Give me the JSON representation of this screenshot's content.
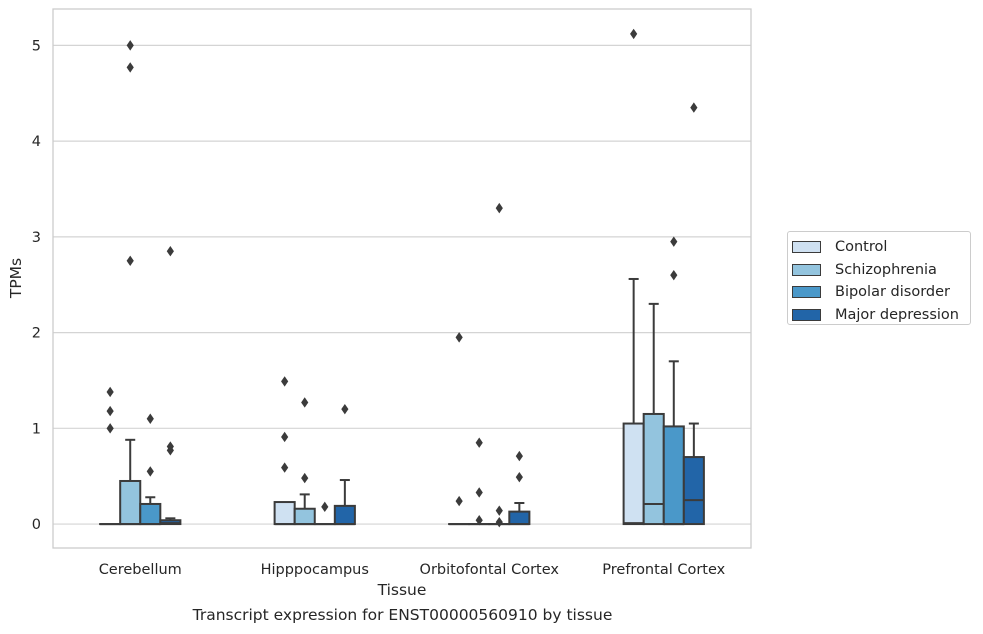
{
  "chart_data": {
    "type": "box",
    "xlabel": "Tissue",
    "ylabel": "TPMs",
    "caption": "Transcript expression for ENST00000560910 by tissue",
    "ylim": [
      -0.25,
      5.38
    ],
    "yticks": [
      0,
      1,
      2,
      3,
      4,
      5
    ],
    "grid": "horizontal",
    "legend_position": "outside-right",
    "categories": [
      "Cerebellum",
      "Hipppocampus",
      "Orbitofontal Cortex",
      "Prefrontal Cortex"
    ],
    "series": [
      {
        "name": "Control",
        "color": "#cfe1f2",
        "boxes": [
          {
            "q1": 0,
            "median": 0,
            "q3": 0,
            "whisker_low": 0,
            "whisker_high": 0,
            "outliers": [
              1.0,
              1.18,
              1.38
            ]
          },
          {
            "q1": 0,
            "median": 0,
            "q3": 0.23,
            "whisker_low": 0,
            "whisker_high": 0.23,
            "outliers": [
              0.59,
              0.91,
              1.49
            ]
          },
          {
            "q1": 0,
            "median": 0,
            "q3": 0,
            "whisker_low": 0,
            "whisker_high": 0,
            "outliers": [
              0.24,
              1.95
            ]
          },
          {
            "q1": 0,
            "median": 0.01,
            "q3": 1.05,
            "whisker_low": 0,
            "whisker_high": 2.56,
            "outliers": [
              5.12
            ]
          }
        ]
      },
      {
        "name": "Schizophrenia",
        "color": "#93c4de",
        "boxes": [
          {
            "q1": 0,
            "median": 0,
            "q3": 0.45,
            "whisker_low": 0,
            "whisker_high": 0.88,
            "outliers": [
              2.75,
              4.77,
              5.0
            ]
          },
          {
            "q1": 0,
            "median": 0,
            "q3": 0.16,
            "whisker_low": 0,
            "whisker_high": 0.31,
            "outliers": [
              0.48,
              1.27
            ]
          },
          {
            "q1": 0,
            "median": 0,
            "q3": 0,
            "whisker_low": 0,
            "whisker_high": 0,
            "outliers": [
              0.04,
              0.33,
              0.85
            ]
          },
          {
            "q1": 0,
            "median": 0.21,
            "q3": 1.15,
            "whisker_low": 0,
            "whisker_high": 2.3,
            "outliers": []
          }
        ]
      },
      {
        "name": "Bipolar disorder",
        "color": "#4a98c9",
        "boxes": [
          {
            "q1": 0,
            "median": 0,
            "q3": 0.21,
            "whisker_low": 0,
            "whisker_high": 0.28,
            "outliers": [
              0.55,
              1.1
            ]
          },
          {
            "q1": 0,
            "median": 0,
            "q3": 0,
            "whisker_low": 0,
            "whisker_high": 0,
            "outliers": [
              0.18
            ]
          },
          {
            "q1": 0,
            "median": 0,
            "q3": 0,
            "whisker_low": 0,
            "whisker_high": 0,
            "outliers": [
              0.02,
              0.14,
              3.3
            ]
          },
          {
            "q1": 0,
            "median": 0,
            "q3": 1.02,
            "whisker_low": 0,
            "whisker_high": 1.7,
            "outliers": [
              2.6,
              2.95
            ]
          }
        ]
      },
      {
        "name": "Major depression",
        "color": "#2265a8",
        "boxes": [
          {
            "q1": 0,
            "median": 0.01,
            "q3": 0.04,
            "whisker_low": 0,
            "whisker_high": 0.06,
            "outliers": [
              0.77,
              0.81,
              2.85
            ]
          },
          {
            "q1": 0,
            "median": 0,
            "q3": 0.19,
            "whisker_low": 0,
            "whisker_high": 0.46,
            "outliers": [
              1.2
            ]
          },
          {
            "q1": 0,
            "median": 0,
            "q3": 0.13,
            "whisker_low": 0,
            "whisker_high": 0.22,
            "outliers": [
              0.49,
              0.71
            ]
          },
          {
            "q1": 0,
            "median": 0.25,
            "q3": 0.7,
            "whisker_low": 0,
            "whisker_high": 1.05,
            "outliers": [
              4.35
            ]
          }
        ]
      }
    ]
  }
}
